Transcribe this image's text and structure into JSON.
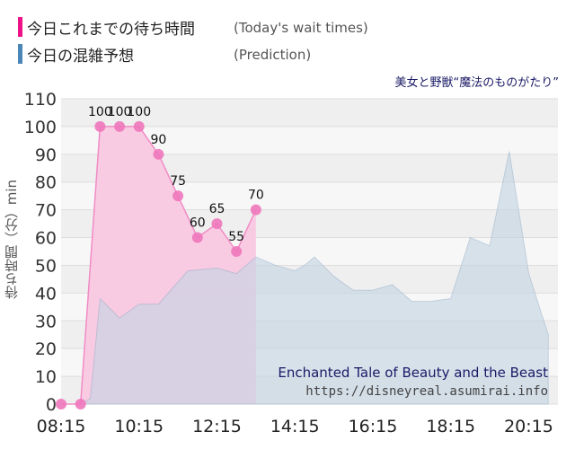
{
  "header": {
    "today_label": "今日これまでの待ち時間",
    "today_label_en": "(Today's wait times)",
    "prediction_label": "今日の混雑予想",
    "prediction_label_en": "(Prediction)"
  },
  "attraction_ja": "美女と野獣“魔法のものがたり”",
  "attraction_en": "Enchanted Tale of Beauty and the Beast",
  "site_url": "https://disneyreal.asumirai.info",
  "colors": {
    "today": "#ee1188",
    "prediction": "#4a86b8"
  },
  "chart_data": {
    "type": "area",
    "ylabel": "待ち時間（分）min",
    "ylim": [
      0,
      110
    ],
    "yticks": [
      0,
      10,
      20,
      30,
      40,
      50,
      60,
      70,
      80,
      90,
      100,
      110
    ],
    "xticks": [
      "08:15",
      "10:15",
      "12:15",
      "14:15",
      "16:15",
      "18:15",
      "20:15"
    ],
    "series": [
      {
        "name": "今日これまでの待ち時間",
        "x": [
          "08:15",
          "08:45",
          "09:15",
          "09:45",
          "10:15",
          "10:45",
          "11:15",
          "11:45",
          "12:15",
          "12:45",
          "13:15"
        ],
        "values": [
          0,
          0,
          100,
          100,
          100,
          90,
          75,
          60,
          65,
          55,
          70
        ]
      },
      {
        "name": "今日の混雑予想",
        "x": [
          "08:45",
          "09:00",
          "09:15",
          "09:45",
          "10:15",
          "10:45",
          "11:00",
          "11:30",
          "12:15",
          "12:45",
          "13:15",
          "13:45",
          "14:15",
          "14:30",
          "14:45",
          "15:15",
          "15:45",
          "16:15",
          "16:45",
          "17:15",
          "17:45",
          "18:15",
          "18:45",
          "19:15",
          "19:45",
          "20:15",
          "20:45"
        ],
        "values": [
          0,
          2,
          38,
          31,
          36,
          36,
          40,
          48,
          49,
          47,
          53,
          50,
          48,
          50,
          53,
          46,
          41,
          41,
          43,
          37,
          37,
          38,
          60,
          57,
          91,
          47,
          25
        ]
      }
    ]
  }
}
